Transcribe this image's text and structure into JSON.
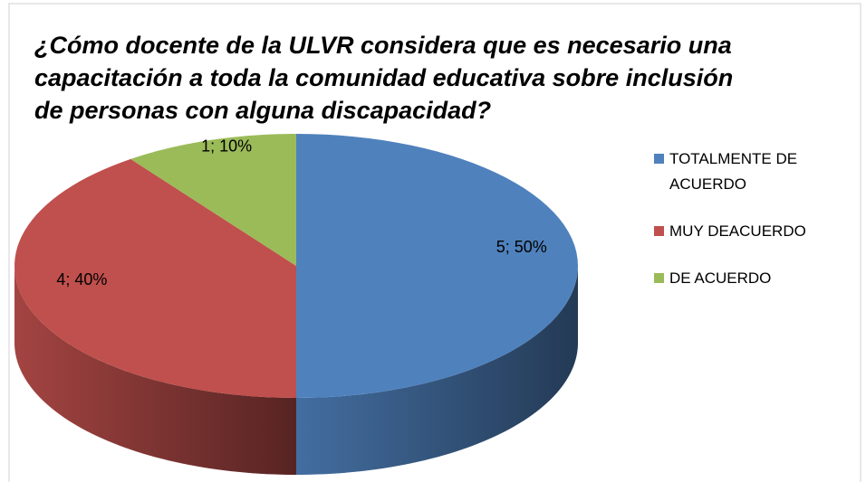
{
  "chart_data": {
    "type": "pie3d",
    "title": "¿Cómo docente de la ULVR considera que es necesario una capacitación a toda la comunidad educativa sobre inclusión de personas con alguna discapacidad?",
    "categories": [
      "TOTALMENTE DE ACUERDO",
      "MUY DEACUERDO",
      "DE ACUERDO"
    ],
    "values": [
      5,
      4,
      1
    ],
    "value_labels": [
      "5; 50%",
      "4; 40%",
      "1; 10%"
    ],
    "colors": [
      "#4f81bd",
      "#c0504d",
      "#9bbb59"
    ],
    "legend": "right"
  }
}
